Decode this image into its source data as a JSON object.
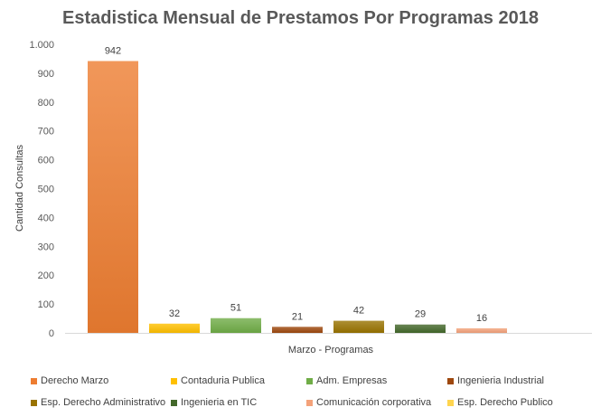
{
  "chart_data": {
    "type": "bar",
    "title": "Estadistica Mensual de Prestamos Por Programas 2018",
    "xlabel": "Marzo - Programas",
    "ylabel": "Cantidad Consultas",
    "ylim": [
      0,
      1000
    ],
    "yticks": [
      0,
      100,
      200,
      300,
      400,
      500,
      600,
      700,
      800,
      900,
      1000
    ],
    "ytick_labels": [
      "0",
      "100",
      "200",
      "300",
      "400",
      "500",
      "600",
      "700",
      "800",
      "900",
      "1.000"
    ],
    "grid": false,
    "legend_position": "bottom",
    "series": [
      {
        "name": "Derecho Marzo",
        "value": 942,
        "color": "#ED7D31"
      },
      {
        "name": "Contaduria Publica",
        "value": 32,
        "color": "#FFC000"
      },
      {
        "name": "Adm. Empresas",
        "value": 51,
        "color": "#70AD47"
      },
      {
        "name": "Ingenieria Industrial",
        "value": 21,
        "color": "#9E480E"
      },
      {
        "name": "Esp. Derecho Administrativo",
        "value": 42,
        "color": "#997300"
      },
      {
        "name": "Ingenieria en TIC",
        "value": 29,
        "color": "#43682B"
      },
      {
        "name": "Comunicación corporativa",
        "value": 16,
        "color": "#F4A27A"
      },
      {
        "name": "Esp. Derecho Publico",
        "value": 0,
        "color": "#FFD54F"
      }
    ],
    "data_labels": [
      "942",
      "32",
      "51",
      "21",
      "42",
      "29",
      "16"
    ]
  }
}
